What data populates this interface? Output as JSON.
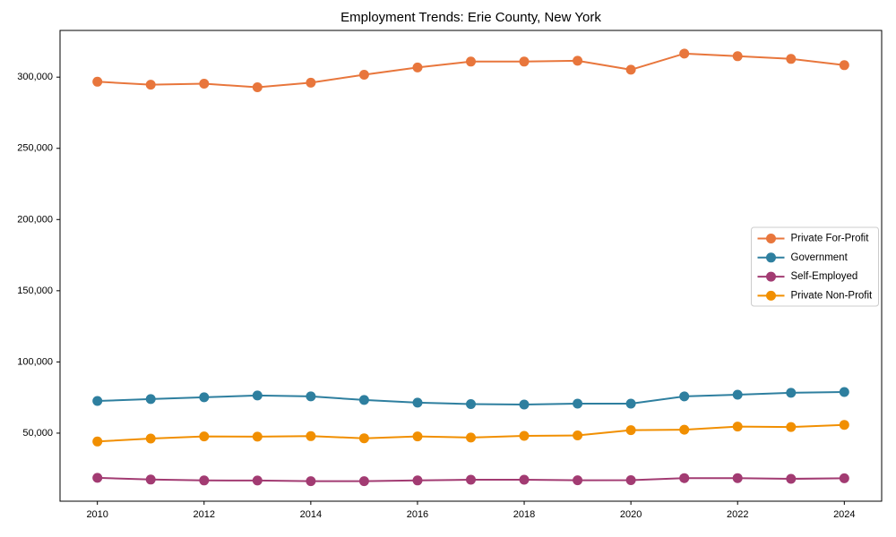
{
  "chart_data": {
    "type": "line",
    "title": "Employment Trends: Erie County, New York",
    "xlabel": "",
    "ylabel": "",
    "grid": false,
    "legend_position": "center-right",
    "xlim": [
      2009.3,
      2024.7
    ],
    "ylim": [
      2200,
      332800
    ],
    "x": [
      2010,
      2011,
      2012,
      2013,
      2014,
      2015,
      2016,
      2017,
      2018,
      2019,
      2020,
      2021,
      2022,
      2023,
      2024
    ],
    "x_ticks": [
      2010,
      2012,
      2014,
      2016,
      2018,
      2020,
      2022,
      2024
    ],
    "x_tick_labels": [
      "2010",
      "2012",
      "2014",
      "2016",
      "2018",
      "2020",
      "2022",
      "2024"
    ],
    "y_ticks": [
      50000,
      100000,
      150000,
      200000,
      250000,
      300000
    ],
    "y_tick_labels": [
      "50,000",
      "100,000",
      "150,000",
      "200,000",
      "250,000",
      "300,000"
    ],
    "series": [
      {
        "name": "Private For-Profit",
        "color": "#e8763c",
        "values": [
          296800,
          294700,
          295400,
          292900,
          296100,
          301700,
          306800,
          310900,
          310900,
          311500,
          305200,
          316500,
          314700,
          312800,
          308400
        ]
      },
      {
        "name": "Government",
        "color": "#2e7f9f",
        "values": [
          72600,
          73900,
          75200,
          76400,
          75800,
          73300,
          71400,
          70400,
          70100,
          70700,
          70700,
          75800,
          77000,
          78300,
          78900
        ]
      },
      {
        "name": "Self-Employed",
        "color": "#a23b72",
        "values": [
          18600,
          17400,
          16800,
          16700,
          16300,
          16300,
          16800,
          17300,
          17300,
          16900,
          17000,
          18400,
          18400,
          17900,
          18300
        ]
      },
      {
        "name": "Private Non-Profit",
        "color": "#f18f01",
        "values": [
          44100,
          46200,
          47700,
          47500,
          47900,
          46400,
          47700,
          46900,
          48100,
          48400,
          52100,
          52400,
          54600,
          54300,
          55800
        ]
      }
    ]
  }
}
